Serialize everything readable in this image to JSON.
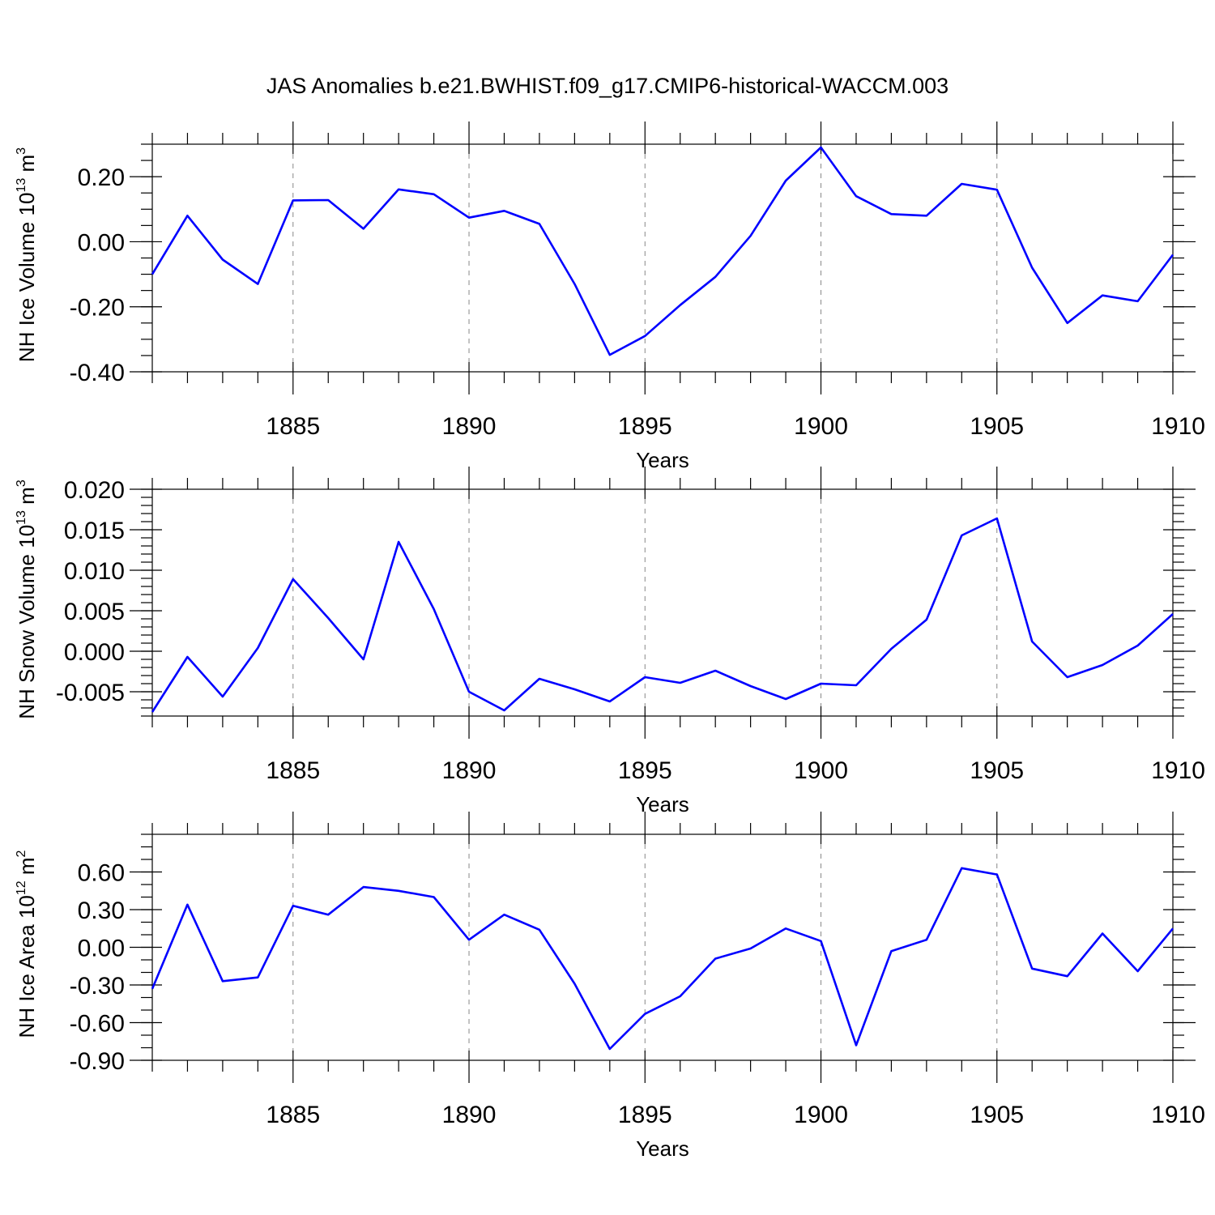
{
  "title": "JAS Anomalies b.e21.BWHIST.f09_g17.CMIP6-historical-WACCM.003",
  "colors": {
    "line": "#0000ff",
    "grid": "#888888",
    "axis": "#000000"
  },
  "chart_data": [
    {
      "type": "line",
      "ylabel": {
        "prefix": "NH Ice Volume 10",
        "exp": "13",
        "mid": " m",
        "unit_exp": "3"
      },
      "xlabel": "Years",
      "xlim": [
        1881,
        1910
      ],
      "ylim": [
        -0.4,
        0.3
      ],
      "yticks": [
        -0.4,
        -0.2,
        0.0,
        0.2
      ],
      "ytick_labels": [
        "-0.40",
        "-0.20",
        "0.00",
        "0.20"
      ],
      "yminor_step": 0.05,
      "xticks": [
        1885,
        1890,
        1895,
        1900,
        1905,
        1910
      ],
      "xtick_labels": [
        "1885",
        "1890",
        "1895",
        "1900",
        "1905",
        "1910"
      ],
      "grid": "vertical dashed at major x ticks",
      "x": [
        1881,
        1882,
        1883,
        1884,
        1885,
        1886,
        1887,
        1888,
        1889,
        1890,
        1891,
        1892,
        1893,
        1894,
        1895,
        1896,
        1897,
        1898,
        1899,
        1900,
        1901,
        1902,
        1903,
        1904,
        1905,
        1906,
        1907,
        1908,
        1909,
        1910
      ],
      "series": [
        {
          "values": [
            -0.1,
            0.08,
            -0.055,
            -0.13,
            0.127,
            0.128,
            0.04,
            0.161,
            0.146,
            0.074,
            0.095,
            0.055,
            -0.13,
            -0.348,
            -0.29,
            -0.195,
            -0.108,
            0.018,
            0.188,
            0.29,
            0.14,
            0.085,
            0.08,
            0.178,
            0.16,
            -0.08,
            -0.25,
            -0.165,
            -0.183,
            -0.04
          ]
        }
      ]
    },
    {
      "type": "line",
      "ylabel": {
        "prefix": "NH Snow Volume 10",
        "exp": "13",
        "mid": " m",
        "unit_exp": "3"
      },
      "xlabel": "Years",
      "xlim": [
        1881,
        1910
      ],
      "ylim": [
        -0.008,
        0.02
      ],
      "yticks": [
        -0.005,
        0.0,
        0.005,
        0.01,
        0.015,
        0.02
      ],
      "ytick_labels": [
        "-0.005",
        "0.000",
        "0.005",
        "0.010",
        "0.015",
        "0.020"
      ],
      "yminor_step": 0.001,
      "xticks": [
        1885,
        1890,
        1895,
        1900,
        1905,
        1910
      ],
      "xtick_labels": [
        "1885",
        "1890",
        "1895",
        "1900",
        "1905",
        "1910"
      ],
      "grid": "vertical dashed at major x ticks",
      "x": [
        1881,
        1882,
        1883,
        1884,
        1885,
        1886,
        1887,
        1888,
        1889,
        1890,
        1891,
        1892,
        1893,
        1894,
        1895,
        1896,
        1897,
        1898,
        1899,
        1900,
        1901,
        1902,
        1903,
        1904,
        1905,
        1906,
        1907,
        1908,
        1909,
        1910
      ],
      "series": [
        {
          "values": [
            -0.0075,
            -0.0007,
            -0.0056,
            0.0004,
            0.0089,
            0.0041,
            -0.001,
            0.0135,
            0.0052,
            -0.005,
            -0.0073,
            -0.0034,
            -0.0047,
            -0.0062,
            -0.0032,
            -0.0039,
            -0.0024,
            -0.0043,
            -0.0059,
            -0.004,
            -0.0042,
            0.0003,
            0.0039,
            0.0143,
            0.0164,
            0.0012,
            -0.0032,
            -0.0017,
            0.0007,
            0.0046
          ]
        }
      ]
    },
    {
      "type": "line",
      "ylabel": {
        "prefix": "NH Ice Area 10",
        "exp": "12",
        "mid": " m",
        "unit_exp": "2"
      },
      "xlabel": "Years",
      "xlim": [
        1881,
        1910
      ],
      "ylim": [
        -0.9,
        0.9
      ],
      "yticks": [
        -0.9,
        -0.6,
        -0.3,
        0.0,
        0.3,
        0.6
      ],
      "ytick_labels": [
        "-0.90",
        "-0.60",
        "-0.30",
        "0.00",
        "0.30",
        "0.60"
      ],
      "yminor_step": 0.1,
      "xticks": [
        1885,
        1890,
        1895,
        1900,
        1905,
        1910
      ],
      "xtick_labels": [
        "1885",
        "1890",
        "1895",
        "1900",
        "1905",
        "1910"
      ],
      "grid": "vertical dashed at major x ticks",
      "x": [
        1881,
        1882,
        1883,
        1884,
        1885,
        1886,
        1887,
        1888,
        1889,
        1890,
        1891,
        1892,
        1893,
        1894,
        1895,
        1896,
        1897,
        1898,
        1899,
        1900,
        1901,
        1902,
        1903,
        1904,
        1905,
        1906,
        1907,
        1908,
        1909,
        1910
      ],
      "series": [
        {
          "values": [
            -0.33,
            0.34,
            -0.27,
            -0.24,
            0.33,
            0.26,
            0.48,
            0.45,
            0.4,
            0.06,
            0.26,
            0.14,
            -0.29,
            -0.81,
            -0.53,
            -0.39,
            -0.09,
            -0.01,
            0.15,
            0.05,
            -0.78,
            -0.03,
            0.06,
            0.63,
            0.58,
            -0.17,
            -0.23,
            0.11,
            -0.19,
            0.15
          ]
        }
      ]
    }
  ]
}
